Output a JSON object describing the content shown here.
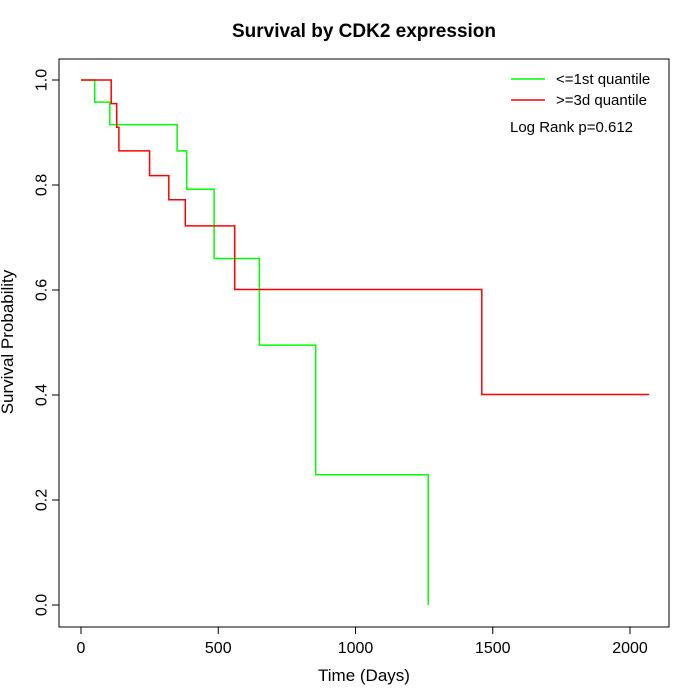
{
  "chart_data": {
    "type": "line",
    "title": "Survival by CDK2 expression",
    "xlabel": "Time (Days)",
    "ylabel": "Survival Probability",
    "xlim": [
      0,
      2070
    ],
    "ylim": [
      0,
      1
    ],
    "x_ticks": [
      0,
      500,
      1000,
      1500,
      2000
    ],
    "x_tick_labels": [
      "0",
      "500",
      "1000",
      "1500",
      "2000"
    ],
    "y_ticks": [
      0,
      0.2,
      0.4,
      0.6,
      0.8,
      1
    ],
    "y_tick_labels": [
      "0.0",
      "0.2",
      "0.4",
      "0.6",
      "0.8",
      "1.0"
    ],
    "grid": false,
    "legend_position": "top-right",
    "annotation": "Log Rank p=0.612",
    "series": [
      {
        "name": "<=1st quantile",
        "color": "#00ff00",
        "step_points": [
          [
            0,
            1.0
          ],
          [
            50,
            1.0
          ],
          [
            50,
            0.958
          ],
          [
            105,
            0.958
          ],
          [
            105,
            0.915
          ],
          [
            350,
            0.915
          ],
          [
            350,
            0.865
          ],
          [
            385,
            0.865
          ],
          [
            385,
            0.792
          ],
          [
            485,
            0.792
          ],
          [
            485,
            0.66
          ],
          [
            650,
            0.66
          ],
          [
            650,
            0.495
          ],
          [
            855,
            0.495
          ],
          [
            855,
            0.248
          ],
          [
            1265,
            0.248
          ],
          [
            1265,
            0.0
          ]
        ]
      },
      {
        "name": ">=3d quantile",
        "color": "#ff0000",
        "step_points": [
          [
            0,
            1.0
          ],
          [
            110,
            1.0
          ],
          [
            110,
            0.955
          ],
          [
            130,
            0.955
          ],
          [
            130,
            0.91
          ],
          [
            138,
            0.91
          ],
          [
            138,
            0.865
          ],
          [
            250,
            0.865
          ],
          [
            250,
            0.818
          ],
          [
            320,
            0.818
          ],
          [
            320,
            0.772
          ],
          [
            380,
            0.772
          ],
          [
            380,
            0.722
          ],
          [
            560,
            0.722
          ],
          [
            560,
            0.601
          ],
          [
            1460,
            0.601
          ],
          [
            1460,
            0.401
          ],
          [
            2070,
            0.401
          ]
        ]
      }
    ]
  }
}
